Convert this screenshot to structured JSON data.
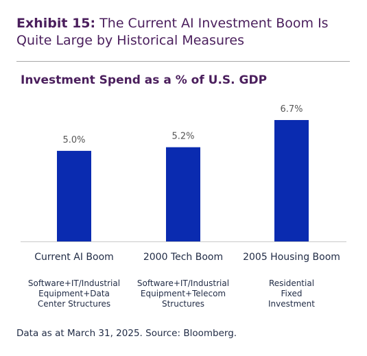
{
  "header": {
    "exhibit_label": "Exhibit 15:",
    "exhibit_title": "The Current AI Investment Boom Is Quite Large by Historical Measures"
  },
  "chart_data": {
    "type": "bar",
    "title": "Investment Spend as a % of U.S. GDP",
    "categories": [
      "Current AI Boom",
      "2000 Tech Boom",
      "2005 Housing Boom"
    ],
    "values": [
      5.0,
      5.2,
      6.7
    ],
    "value_labels": [
      "5.0%",
      "5.2%",
      "6.7%"
    ],
    "subnotes": [
      [
        "Software+IT/Industrial",
        "Equipment+Data",
        "Center Structures"
      ],
      [
        "Software+IT/Industrial",
        "Equipment+Telecom",
        "Structures"
      ],
      [
        "Residential",
        "Fixed",
        "Investment"
      ]
    ],
    "xlabel": "",
    "ylabel": "",
    "ylim": [
      0,
      6.7
    ],
    "grid": false,
    "bar_color": "#0a2bb0"
  },
  "footer": {
    "source": "Data as at March 31, 2025. Source: Bloomberg."
  }
}
